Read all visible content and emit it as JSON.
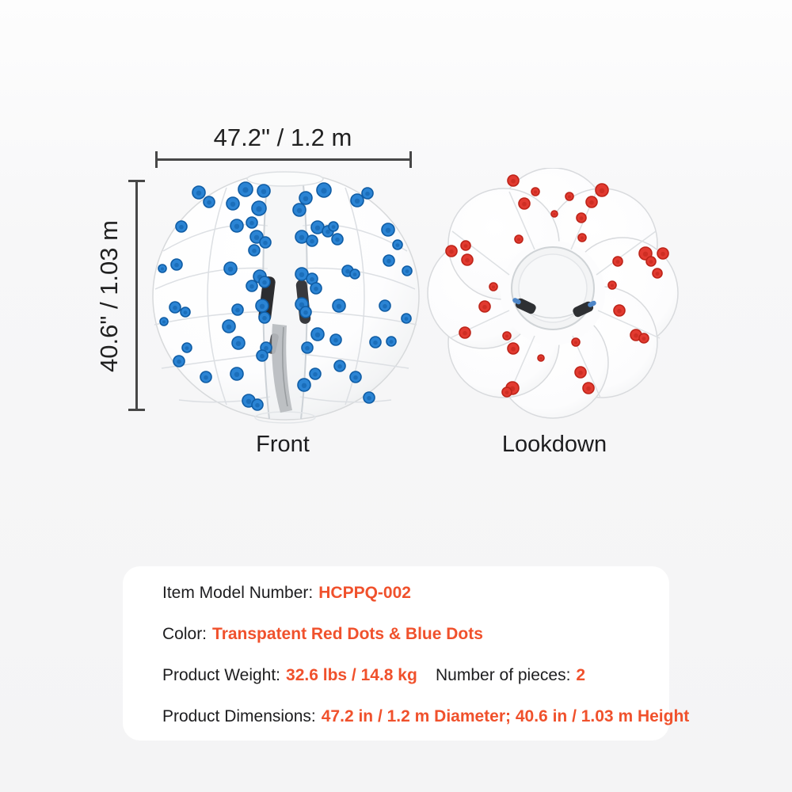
{
  "page": {
    "background": "#f6f6f7",
    "card_background": "#ffffff"
  },
  "colors": {
    "accent_orange": "#f0512c",
    "text_dark": "#1d1d1f",
    "dim_line": "#474747",
    "dot_blue": "#2b84d4",
    "dot_blue_dark": "#0f5ca4",
    "dot_red": "#e23a30",
    "dot_red_dark": "#bd2419"
  },
  "dimensions": {
    "width_label": "47.2\" / 1.2 m",
    "height_label": "40.6\" / 1.03 m"
  },
  "views": {
    "front_label": "Front",
    "lookdown_label": "Lookdown"
  },
  "specs": {
    "model": {
      "label": "Item Model Number:",
      "value": "HCPPQ-002"
    },
    "color": {
      "label": "Color:",
      "value": "Transpatent Red Dots & Blue Dots"
    },
    "weight": {
      "label": "Product Weight:",
      "value": "32.6 lbs / 14.8 kg"
    },
    "pieces": {
      "label": "Number of pieces:",
      "value": "2"
    },
    "product_dimensions": {
      "label": "Product Dimensions:",
      "value": "47.2 in / 1.2 m Diameter; 40.6 in / 1.03 m Height"
    }
  },
  "illustration": {
    "front_dots": [
      [
        61,
        30,
        8
      ],
      [
        74,
        42,
        7
      ],
      [
        120,
        26,
        9
      ],
      [
        104,
        44,
        8
      ],
      [
        137,
        50,
        9
      ],
      [
        143,
        28,
        8
      ],
      [
        196,
        37,
        8
      ],
      [
        219,
        27,
        9
      ],
      [
        261,
        40,
        8
      ],
      [
        274,
        31,
        7
      ],
      [
        300,
        77,
        8
      ],
      [
        312,
        96,
        6
      ],
      [
        39,
        73,
        7
      ],
      [
        33,
        121,
        7
      ],
      [
        15,
        126,
        5
      ],
      [
        31,
        175,
        7
      ],
      [
        17,
        193,
        5
      ],
      [
        44,
        181,
        6
      ],
      [
        36,
        243,
        7
      ],
      [
        46,
        226,
        6
      ],
      [
        70,
        263,
        7
      ],
      [
        109,
        259,
        8
      ],
      [
        111,
        220,
        8
      ],
      [
        99,
        199,
        8
      ],
      [
        101,
        126,
        8
      ],
      [
        109,
        72,
        8
      ],
      [
        128,
        68,
        7
      ],
      [
        134,
        86,
        8
      ],
      [
        145,
        93,
        7
      ],
      [
        131,
        103,
        7
      ],
      [
        138,
        136,
        8
      ],
      [
        144,
        143,
        7
      ],
      [
        128,
        148,
        7
      ],
      [
        141,
        173,
        8
      ],
      [
        110,
        178,
        7
      ],
      [
        144,
        188,
        7
      ],
      [
        146,
        226,
        7
      ],
      [
        141,
        236,
        7
      ],
      [
        124,
        293,
        8
      ],
      [
        135,
        298,
        7
      ],
      [
        188,
        52,
        8
      ],
      [
        191,
        86,
        8
      ],
      [
        204,
        91,
        7
      ],
      [
        211,
        74,
        8
      ],
      [
        224,
        79,
        7
      ],
      [
        231,
        73,
        6
      ],
      [
        236,
        89,
        7
      ],
      [
        191,
        133,
        8
      ],
      [
        204,
        139,
        7
      ],
      [
        209,
        151,
        7
      ],
      [
        191,
        171,
        8
      ],
      [
        196,
        181,
        7
      ],
      [
        211,
        209,
        8
      ],
      [
        198,
        226,
        7
      ],
      [
        194,
        273,
        8
      ],
      [
        208,
        259,
        7
      ],
      [
        238,
        173,
        8
      ],
      [
        249,
        129,
        7
      ],
      [
        258,
        133,
        6
      ],
      [
        234,
        216,
        7
      ],
      [
        239,
        249,
        7
      ],
      [
        259,
        263,
        7
      ],
      [
        301,
        116,
        7
      ],
      [
        296,
        173,
        7
      ],
      [
        304,
        218,
        6
      ],
      [
        284,
        219,
        7
      ],
      [
        276,
        289,
        7
      ],
      [
        324,
        129,
        6
      ],
      [
        323,
        189,
        6
      ]
    ],
    "lookdown_dots": [
      [
        115,
        16,
        7
      ],
      [
        129,
        45,
        7
      ],
      [
        227,
        28,
        8
      ],
      [
        214,
        43,
        7
      ],
      [
        201,
        63,
        6
      ],
      [
        37,
        105,
        7
      ],
      [
        57,
        116,
        7
      ],
      [
        55,
        98,
        6
      ],
      [
        282,
        108,
        8
      ],
      [
        289,
        118,
        6
      ],
      [
        304,
        108,
        7
      ],
      [
        247,
        118,
        6
      ],
      [
        79,
        175,
        7
      ],
      [
        54,
        208,
        7
      ],
      [
        115,
        228,
        7
      ],
      [
        114,
        278,
        8
      ],
      [
        107,
        283,
        6
      ],
      [
        200,
        258,
        7
      ],
      [
        210,
        278,
        7
      ],
      [
        249,
        180,
        7
      ],
      [
        270,
        211,
        7
      ],
      [
        280,
        215,
        6
      ],
      [
        297,
        133,
        6
      ],
      [
        122,
        90,
        5
      ],
      [
        202,
        88,
        5
      ],
      [
        90,
        150,
        5
      ],
      [
        240,
        148,
        5
      ],
      [
        107,
        212,
        5
      ],
      [
        194,
        220,
        5
      ],
      [
        150,
        240,
        4
      ],
      [
        167,
        58,
        4
      ],
      [
        186,
        36,
        5
      ],
      [
        143,
        30,
        5
      ]
    ]
  }
}
